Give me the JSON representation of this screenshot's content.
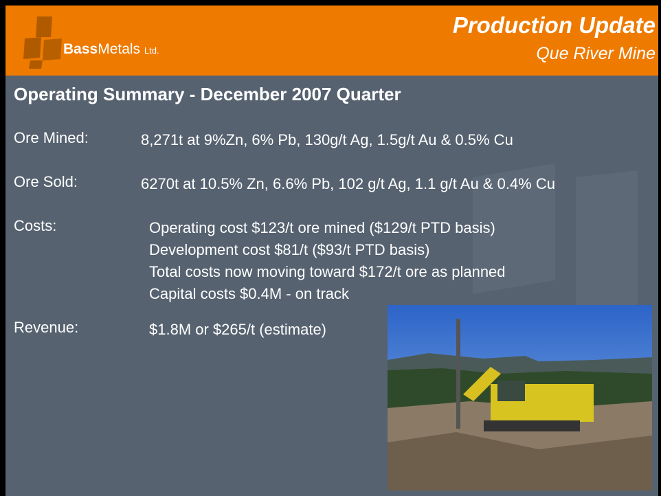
{
  "header": {
    "title": "Production Update",
    "subtitle": "Que River Mine"
  },
  "logo": {
    "bold": "Bass",
    "light": "Metals",
    "suffix": "Ltd."
  },
  "heading": "Operating Summary - December 2007 Quarter",
  "rows": [
    {
      "label": "Ore Mined:",
      "lines": [
        "8,271t at 9%Zn, 6% Pb, 130g/t Ag, 1.5g/t Au & 0.5% Cu"
      ]
    },
    {
      "label": "Ore Sold:",
      "lines": [
        "6270t at 10.5% Zn, 6.6% Pb, 102 g/t Ag, 1.1 g/t Au & 0.4% Cu"
      ]
    },
    {
      "label": "Costs:",
      "lines": [
        "Operating cost  $123/t ore mined ($129/t PTD basis)",
        "Development cost $81/t ($93/t PTD basis)",
        "Total costs now moving toward $172/t ore as planned",
        "Capital costs $0.4M  - on track"
      ]
    },
    {
      "label": "Revenue:",
      "lines": [
        "$1.8M or $265/t (estimate)"
      ]
    }
  ]
}
